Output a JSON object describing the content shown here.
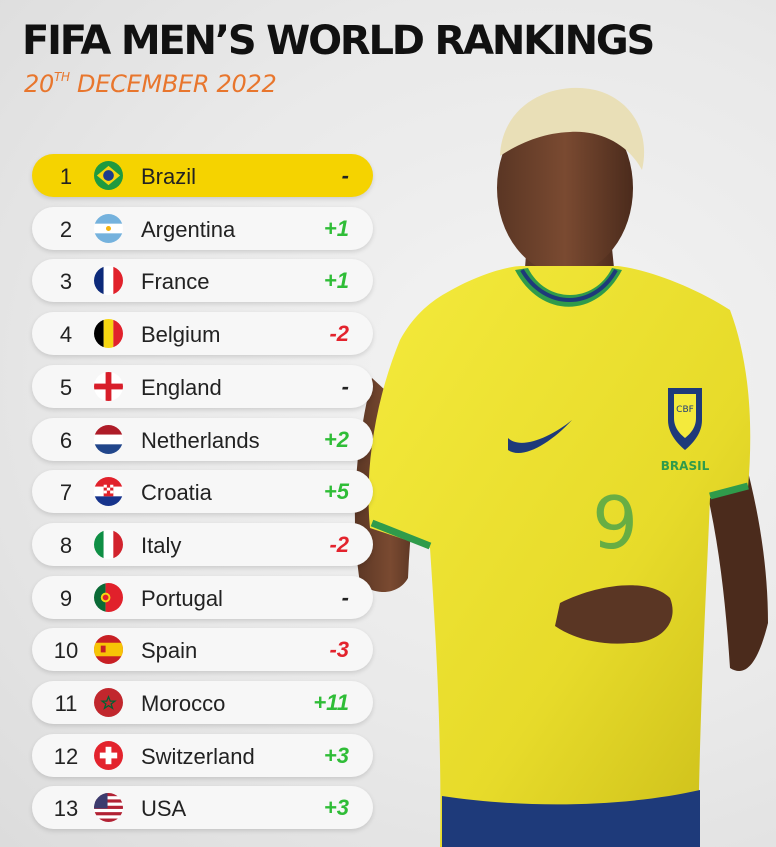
{
  "header": {
    "title": "FIFA MEN’S WORLD RANKINGS",
    "date_day": "20",
    "date_suffix": "TH",
    "date_rest": " DECEMBER 2022"
  },
  "player": {
    "badge_text": "CBF",
    "brand_text": "BRASIL",
    "shirt_number": "9"
  },
  "colors": {
    "highlight": "#f5d300",
    "positive": "#2fbd37",
    "negative": "#e3232d",
    "accent": "#e8762d"
  },
  "rankings": [
    {
      "rank": "1",
      "country": "Brazil",
      "change": "-",
      "trend": "same",
      "flag": "brazil-flag-icon"
    },
    {
      "rank": "2",
      "country": "Argentina",
      "change": "+1",
      "trend": "up",
      "flag": "argentina-flag-icon"
    },
    {
      "rank": "3",
      "country": "France",
      "change": "+1",
      "trend": "up",
      "flag": "france-flag-icon"
    },
    {
      "rank": "4",
      "country": "Belgium",
      "change": "-2",
      "trend": "down",
      "flag": "belgium-flag-icon"
    },
    {
      "rank": "5",
      "country": "England",
      "change": "-",
      "trend": "same",
      "flag": "england-flag-icon"
    },
    {
      "rank": "6",
      "country": "Netherlands",
      "change": "+2",
      "trend": "up",
      "flag": "netherlands-flag-icon"
    },
    {
      "rank": "7",
      "country": "Croatia",
      "change": "+5",
      "trend": "up",
      "flag": "croatia-flag-icon"
    },
    {
      "rank": "8",
      "country": "Italy",
      "change": "-2",
      "trend": "down",
      "flag": "italy-flag-icon"
    },
    {
      "rank": "9",
      "country": "Portugal",
      "change": "-",
      "trend": "same",
      "flag": "portugal-flag-icon"
    },
    {
      "rank": "10",
      "country": "Spain",
      "change": "-3",
      "trend": "down",
      "flag": "spain-flag-icon"
    },
    {
      "rank": "11",
      "country": "Morocco",
      "change": "+11",
      "trend": "up",
      "flag": "morocco-flag-icon"
    },
    {
      "rank": "12",
      "country": "Switzerland",
      "change": "+3",
      "trend": "up",
      "flag": "switzerland-flag-icon"
    },
    {
      "rank": "13",
      "country": "USA",
      "change": "+3",
      "trend": "up",
      "flag": "usa-flag-icon"
    }
  ]
}
